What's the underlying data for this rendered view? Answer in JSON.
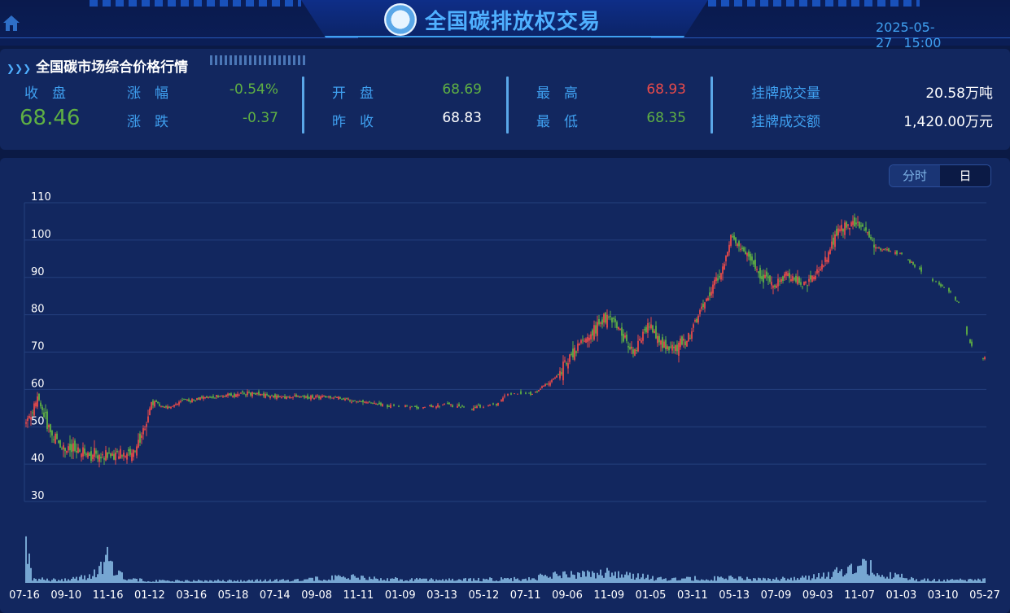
{
  "header": {
    "title": "全国碳排放权交易",
    "date": "2025-05-27",
    "time": "15:00",
    "home_icon": "home-icon",
    "logo_icon": "exchange-logo-icon"
  },
  "quote": {
    "title": "全国碳市场综合价格行情",
    "close_label": "收　盘",
    "close_value": "68.46",
    "change_pct_label": "涨　幅",
    "change_pct_value": "-0.54%",
    "change_label": "涨　跌",
    "change_value": "-0.37",
    "open_label": "开　盘",
    "open_value": "68.69",
    "prev_close_label": "昨　收",
    "prev_close_value": "68.83",
    "high_label": "最　高",
    "high_value": "68.93",
    "low_label": "最　低",
    "low_value": "68.35",
    "volume_label": "挂牌成交量",
    "volume_value": "20.58万吨",
    "amount_label": "挂牌成交额",
    "amount_value": "1,420.00万元",
    "colors": {
      "up": "#e84a4a",
      "down": "#5fb043",
      "label": "#3fa0f0"
    }
  },
  "toggle": {
    "minute_label": "分时",
    "day_label": "日",
    "selected": "日"
  },
  "chart_data": {
    "type": "candlestick",
    "y_ticks": [
      "110",
      "100",
      "90",
      "80",
      "70",
      "60",
      "50",
      "40",
      "30"
    ],
    "ylim": [
      30,
      110
    ],
    "x_ticks": [
      "07-16",
      "09-10",
      "11-16",
      "01-12",
      "03-16",
      "05-18",
      "07-14",
      "09-08",
      "11-11",
      "01-09",
      "03-13",
      "05-12",
      "07-11",
      "09-06",
      "11-09",
      "01-05",
      "03-11",
      "05-13",
      "07-09",
      "09-03",
      "11-07",
      "01-03",
      "03-10",
      "05-27"
    ],
    "price_path": [
      [
        0,
        52
      ],
      [
        2,
        57
      ],
      [
        4,
        48
      ],
      [
        6,
        44
      ],
      [
        9,
        43
      ],
      [
        12,
        42
      ],
      [
        15,
        43
      ],
      [
        17,
        43
      ],
      [
        18,
        47
      ],
      [
        20,
        57
      ],
      [
        22,
        55
      ],
      [
        25,
        57
      ],
      [
        30,
        58
      ],
      [
        35,
        59
      ],
      [
        40,
        58
      ],
      [
        45,
        58
      ],
      [
        48,
        58
      ],
      [
        52,
        57
      ],
      [
        56,
        56
      ],
      [
        62,
        55
      ],
      [
        66,
        56
      ],
      [
        70,
        55
      ],
      [
        74,
        56
      ],
      [
        76,
        59
      ],
      [
        80,
        59
      ],
      [
        84,
        64
      ],
      [
        86,
        70
      ],
      [
        88,
        73
      ],
      [
        90,
        77
      ],
      [
        92,
        80
      ],
      [
        94,
        74
      ],
      [
        96,
        70
      ],
      [
        98,
        78
      ],
      [
        100,
        72
      ],
      [
        102,
        71
      ],
      [
        104,
        73
      ],
      [
        106,
        80
      ],
      [
        108,
        87
      ],
      [
        110,
        93
      ],
      [
        111,
        102
      ],
      [
        112,
        99
      ],
      [
        114,
        95
      ],
      [
        116,
        90
      ],
      [
        118,
        88
      ],
      [
        120,
        91
      ],
      [
        122,
        88
      ],
      [
        124,
        90
      ],
      [
        126,
        95
      ],
      [
        128,
        103
      ],
      [
        130,
        105
      ],
      [
        132,
        103
      ],
      [
        134,
        98
      ],
      [
        136,
        97
      ],
      [
        138,
        96
      ],
      [
        140,
        93
      ],
      [
        142,
        90
      ],
      [
        145,
        87
      ],
      [
        147,
        83
      ],
      [
        148,
        76
      ],
      [
        149,
        71
      ],
      [
        150,
        69
      ],
      [
        151,
        68.46
      ]
    ],
    "price_path_x_max": 151,
    "volume_profile": [
      [
        0,
        0.95
      ],
      [
        1,
        0.08
      ],
      [
        5,
        0.06
      ],
      [
        10,
        0.12
      ],
      [
        12,
        0.3
      ],
      [
        13,
        0.55
      ],
      [
        14,
        0.3
      ],
      [
        16,
        0.08
      ],
      [
        20,
        0.04
      ],
      [
        40,
        0.05
      ],
      [
        52,
        0.12
      ],
      [
        55,
        0.08
      ],
      [
        66,
        0.06
      ],
      [
        78,
        0.08
      ],
      [
        84,
        0.16
      ],
      [
        88,
        0.2
      ],
      [
        92,
        0.2
      ],
      [
        96,
        0.14
      ],
      [
        100,
        0.08
      ],
      [
        110,
        0.1
      ],
      [
        116,
        0.08
      ],
      [
        120,
        0.08
      ],
      [
        126,
        0.14
      ],
      [
        130,
        0.3
      ],
      [
        132,
        0.35
      ],
      [
        135,
        0.2
      ],
      [
        140,
        0.06
      ],
      [
        150,
        0.06
      ]
    ]
  }
}
